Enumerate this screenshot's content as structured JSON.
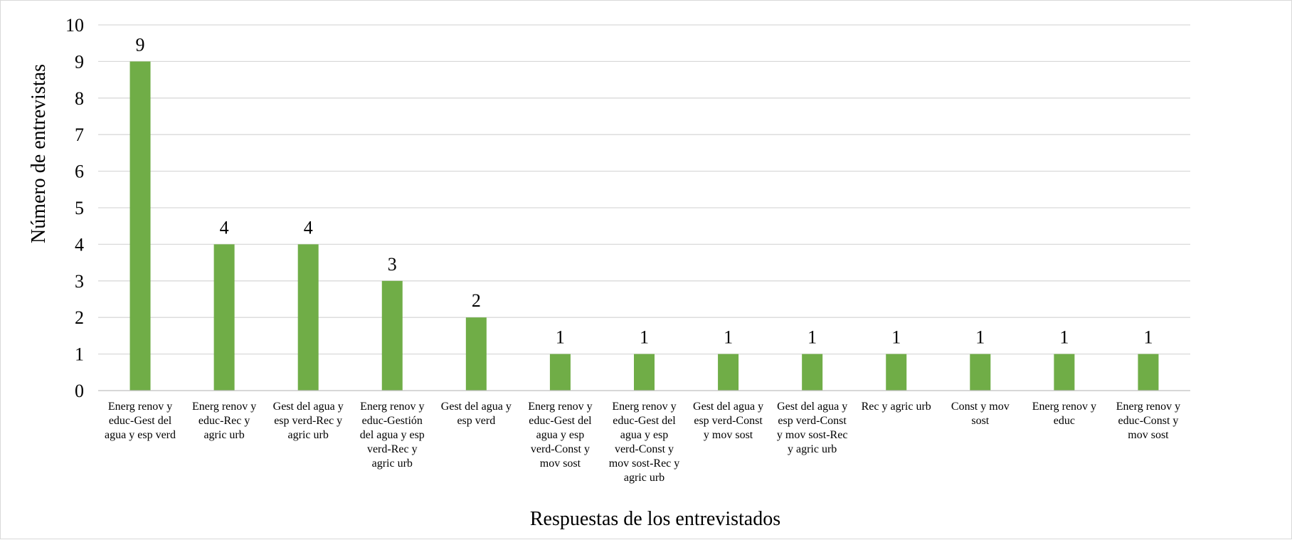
{
  "chart_data": {
    "type": "bar",
    "categories": [
      [
        "Energ renov y",
        "educ-Gest del",
        "agua y esp verd"
      ],
      [
        "Energ renov y",
        "educ-Rec y",
        "agric urb"
      ],
      [
        "Gest del agua y",
        "esp verd-Rec y",
        "agric urb"
      ],
      [
        "Energ renov y",
        "educ-Gestión",
        "del agua y esp",
        "verd-Rec y",
        "agric urb"
      ],
      [
        "Gest del agua y",
        "esp verd"
      ],
      [
        "Energ renov y",
        "educ-Gest del",
        "agua y esp",
        "verd-Const y",
        "mov sost"
      ],
      [
        "Energ renov y",
        "educ-Gest del",
        "agua y esp",
        "verd-Const y",
        "mov sost-Rec y",
        "agric urb"
      ],
      [
        "Gest del agua y",
        "esp verd-Const",
        "y mov sost"
      ],
      [
        "Gest del agua y",
        "esp verd-Const",
        "y mov sost-Rec",
        "y agric urb"
      ],
      [
        "Rec y agric urb"
      ],
      [
        "Const y mov",
        "sost"
      ],
      [
        "Energ renov y",
        "educ"
      ],
      [
        "Energ renov y",
        "educ-Const y",
        "mov sost"
      ]
    ],
    "values": [
      9,
      4,
      4,
      3,
      2,
      1,
      1,
      1,
      1,
      1,
      1,
      1,
      1
    ],
    "data_labels": [
      "9",
      "4",
      "4",
      "3",
      "2",
      "1",
      "1",
      "1",
      "1",
      "1",
      "1",
      "1",
      "1"
    ],
    "title": "",
    "xlabel": "Respuestas de los entrevistados",
    "ylabel": "Número de entrevistas",
    "ylim": [
      0,
      10
    ],
    "yticks": [
      "0",
      "1",
      "2",
      "3",
      "4",
      "5",
      "6",
      "7",
      "8",
      "9",
      "10"
    ],
    "grid": true,
    "legend": "none",
    "bar_color": "#70ad47"
  }
}
